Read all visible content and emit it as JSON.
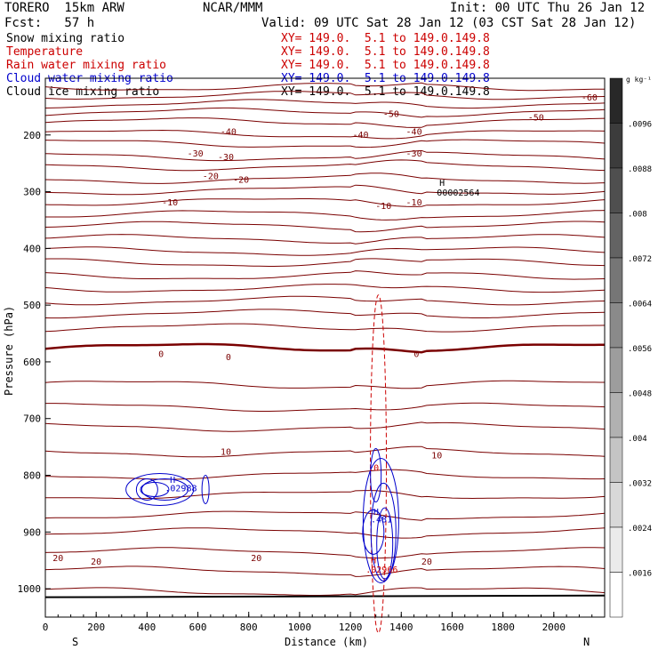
{
  "header": {
    "model": "TORERO  15km ARW",
    "center": "NCAR/MMM",
    "init": "Init: 00 UTC Thu 26 Jan 12",
    "fcst": "Fcst:   57 h",
    "valid": "Valid: 09 UTC Sat 28 Jan 12 (03 CST Sat 28 Jan 12)"
  },
  "colors": {
    "snow": "#000000",
    "temperature": "#7a0000",
    "rain": "#cc0000",
    "cloud_water": "#0000cc",
    "cloud_ice": "#000000"
  },
  "fields": [
    {
      "name": "Snow mixing ratio",
      "xy": "XY= 149.0.  5.1 to 149.0.149.8",
      "color": "#000000",
      "xy_color": "#cc0000"
    },
    {
      "name": "Temperature",
      "xy": "XY= 149.0.  5.1 to 149.0.149.8",
      "color": "#cc0000",
      "xy_color": "#cc0000"
    },
    {
      "name": "Rain water mixing ratio",
      "xy": "XY= 149.0.  5.1 to 149.0.149.8",
      "color": "#cc0000",
      "xy_color": "#cc0000"
    },
    {
      "name": "Cloud water mixing ratio",
      "xy": "XY= 149.0.  5.1 to 149.0.149.8",
      "color": "#0000cc",
      "xy_color": "#0000cc"
    },
    {
      "name": "Cloud ice mixing ratio",
      "xy": "XY= 149.0.  5.1 to 149.0.149.8",
      "color": "#000000",
      "xy_color": "#000000"
    }
  ],
  "chart_data": {
    "type": "contour",
    "xlabel": "Distance (km)",
    "ylabel": "Pressure (hPa)",
    "xlim": [
      0,
      2200
    ],
    "ylim": [
      1050,
      100
    ],
    "x_ticks": [
      0,
      200,
      400,
      600,
      800,
      1000,
      1200,
      1400,
      1600,
      1800,
      2000
    ],
    "y_ticks": [
      200,
      300,
      400,
      500,
      600,
      700,
      800,
      900,
      1000
    ],
    "left_end_label": "S",
    "right_end_label": "N",
    "colorbar": {
      "unit": "g kg⁻¹",
      "ticks": [
        ".0096",
        ".0088",
        ".008",
        ".0072",
        ".0064",
        ".0056",
        ".0048",
        ".004",
        ".0032",
        ".0024",
        ".0016"
      ]
    },
    "temperature_isotherms": [
      {
        "value": -60,
        "labels": [
          {
            "text": "-60",
            "x": 2140
          }
        ]
      },
      {
        "value": -50,
        "labels": [
          {
            "text": "-50",
            "x": 1360
          },
          {
            "text": "-50",
            "x": 1930
          }
        ]
      },
      {
        "value": -40,
        "labels": [
          {
            "text": "-40",
            "x": 720
          },
          {
            "text": "-40",
            "x": 1240
          },
          {
            "text": "-40",
            "x": 1450
          }
        ]
      },
      {
        "value": -30,
        "labels": [
          {
            "text": "-30",
            "x": 590
          },
          {
            "text": "-30",
            "x": 710
          },
          {
            "text": "-30",
            "x": 1450
          }
        ]
      },
      {
        "value": -20,
        "labels": [
          {
            "text": "-20",
            "x": 650
          },
          {
            "text": "-20",
            "x": 770
          }
        ]
      },
      {
        "value": -10,
        "labels": [
          {
            "text": "-10",
            "x": 490
          },
          {
            "text": "-10",
            "x": 1330
          },
          {
            "text": "-10",
            "x": 1450
          }
        ]
      },
      {
        "value": 0,
        "labels": [
          {
            "text": "0",
            "x": 455
          },
          {
            "text": "0",
            "x": 720
          },
          {
            "text": "0",
            "x": 1460
          }
        ]
      },
      {
        "value": 10,
        "labels": [
          {
            "text": "10",
            "x": 710
          },
          {
            "text": "10",
            "x": 1540
          }
        ]
      },
      {
        "value": 20,
        "labels": [
          {
            "text": "20",
            "x": 50
          },
          {
            "text": "20",
            "x": 200
          },
          {
            "text": "20",
            "x": 830
          },
          {
            "text": "20",
            "x": 1500
          }
        ]
      }
    ],
    "annotations": [
      {
        "text": "H",
        "x": 1550,
        "p": 290,
        "color": "#000000"
      },
      {
        "text": "00002564",
        "x": 1540,
        "p": 307,
        "color": "#000000"
      },
      {
        "text": "H",
        "x": 490,
        "p": 813,
        "color": "#0000cc"
      },
      {
        "text": ".02988",
        "x": 470,
        "p": 828,
        "color": "#0000cc"
      },
      {
        "text": "H",
        "x": 1290,
        "p": 870,
        "color": "#0000cc"
      },
      {
        "text": ".481",
        "x": 1280,
        "p": 883,
        "color": "#0000cc"
      },
      {
        "text": "H",
        "x": 1280,
        "p": 955,
        "color": "#cc0000"
      },
      {
        "text": ".02966",
        "x": 1260,
        "p": 972,
        "color": "#cc0000"
      },
      {
        "text": ".0",
        "x": 1270,
        "p": 792,
        "color": "#cc0000"
      }
    ]
  }
}
